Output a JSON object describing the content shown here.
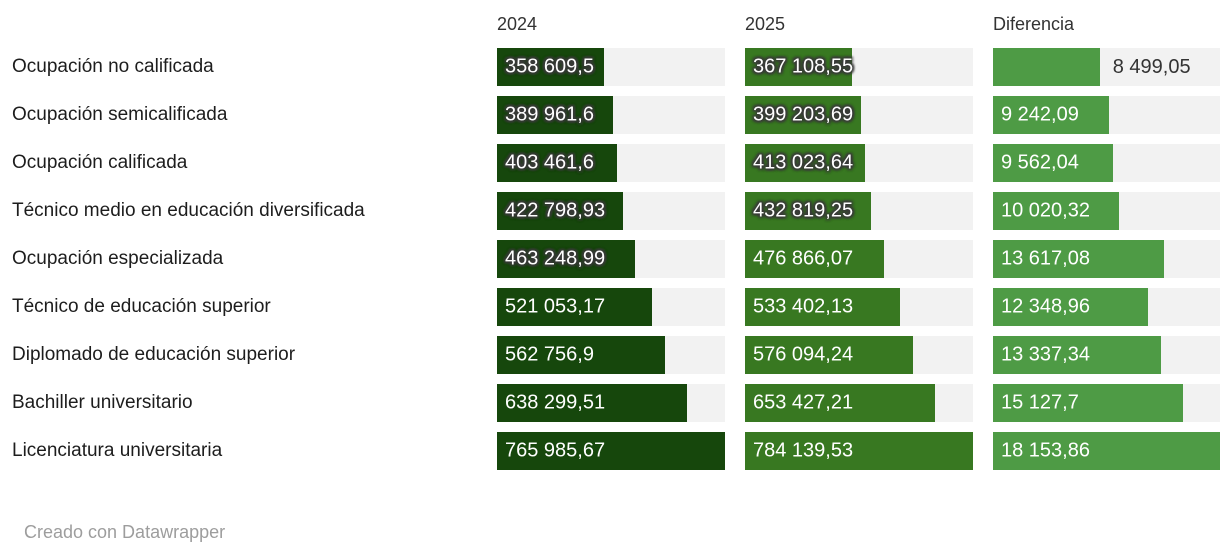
{
  "chart_data": {
    "type": "bar",
    "orientation": "horizontal",
    "title": "",
    "categories": [
      "Ocupación no calificada",
      "Ocupación semicalificada",
      "Ocupación calificada",
      "Técnico medio en educación diversificada",
      "Ocupación especializada",
      "Técnico de educación superior",
      "Diplomado de educación superior",
      "Bachiller universitario",
      "Licenciatura universitaria"
    ],
    "series": [
      {
        "name": "2024",
        "color": "#16470c",
        "values": [
          358609.5,
          389961.6,
          403461.6,
          422798.93,
          463248.99,
          521053.17,
          562756.9,
          638299.51,
          765985.67
        ],
        "labels": [
          "358 609,5",
          "389 961,6",
          "403 461,6",
          "422 798,93",
          "463 248,99",
          "521 053,17",
          "562 756,9",
          "638 299,51",
          "765 985,67"
        ],
        "xlim": [
          0,
          765985.67
        ],
        "halo_rows": [
          0,
          1,
          2,
          3,
          4
        ],
        "outside_rows": []
      },
      {
        "name": "2025",
        "color": "#387821",
        "values": [
          367108.55,
          399203.69,
          413023.64,
          432819.25,
          476866.07,
          533402.13,
          576094.24,
          653427.21,
          784139.53
        ],
        "labels": [
          "367 108,55",
          "399 203,69",
          "413 023,64",
          "432 819,25",
          "476 866,07",
          "533 402,13",
          "576 094,24",
          "653 427,21",
          "784 139,53"
        ],
        "xlim": [
          0,
          784139.53
        ],
        "halo_rows": [
          0,
          1,
          2,
          3
        ],
        "outside_rows": []
      },
      {
        "name": "Diferencia",
        "color": "#4e9b45",
        "values": [
          8499.05,
          9242.09,
          9562.04,
          10020.32,
          13617.08,
          12348.96,
          13337.34,
          15127.7,
          18153.86
        ],
        "labels": [
          "8 499,05",
          "9 242,09",
          "9 562,04",
          "10 020,32",
          "13 617,08",
          "12 348,96",
          "13 337,34",
          "15 127,7",
          "18 153,86"
        ],
        "xlim": [
          0,
          18153.86
        ],
        "halo_rows": [],
        "outside_rows": [
          0
        ]
      }
    ],
    "track_color": "#f2f2f2",
    "grid": false,
    "legend_position": "column-headers"
  },
  "footer": {
    "credit": "Creado con Datawrapper"
  }
}
